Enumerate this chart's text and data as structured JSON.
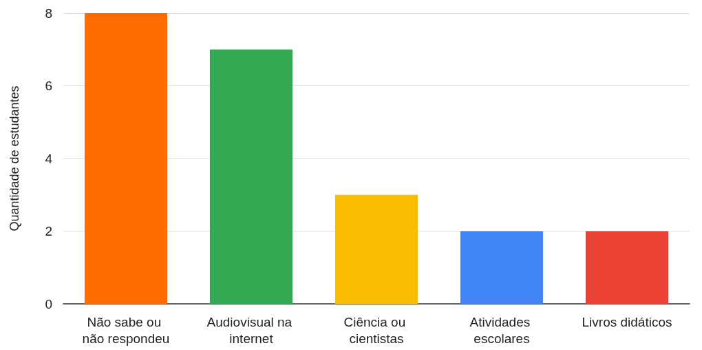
{
  "chart_data": {
    "type": "bar",
    "ylabel": "Quantidade de estudantes",
    "categories": [
      "Não sabe ou não respondeu",
      "Audiovisual na internet",
      "Ciência ou cientistas",
      "Atividades escolares",
      "Livros didáticos"
    ],
    "values": [
      8,
      7,
      3,
      2,
      2
    ],
    "colors": [
      "#ff6d01",
      "#34a853",
      "#fbbc04",
      "#4285f4",
      "#ea4335"
    ],
    "ylim": [
      0,
      8
    ],
    "yticks": [
      0,
      2,
      4,
      6,
      8
    ],
    "grid": "y"
  }
}
